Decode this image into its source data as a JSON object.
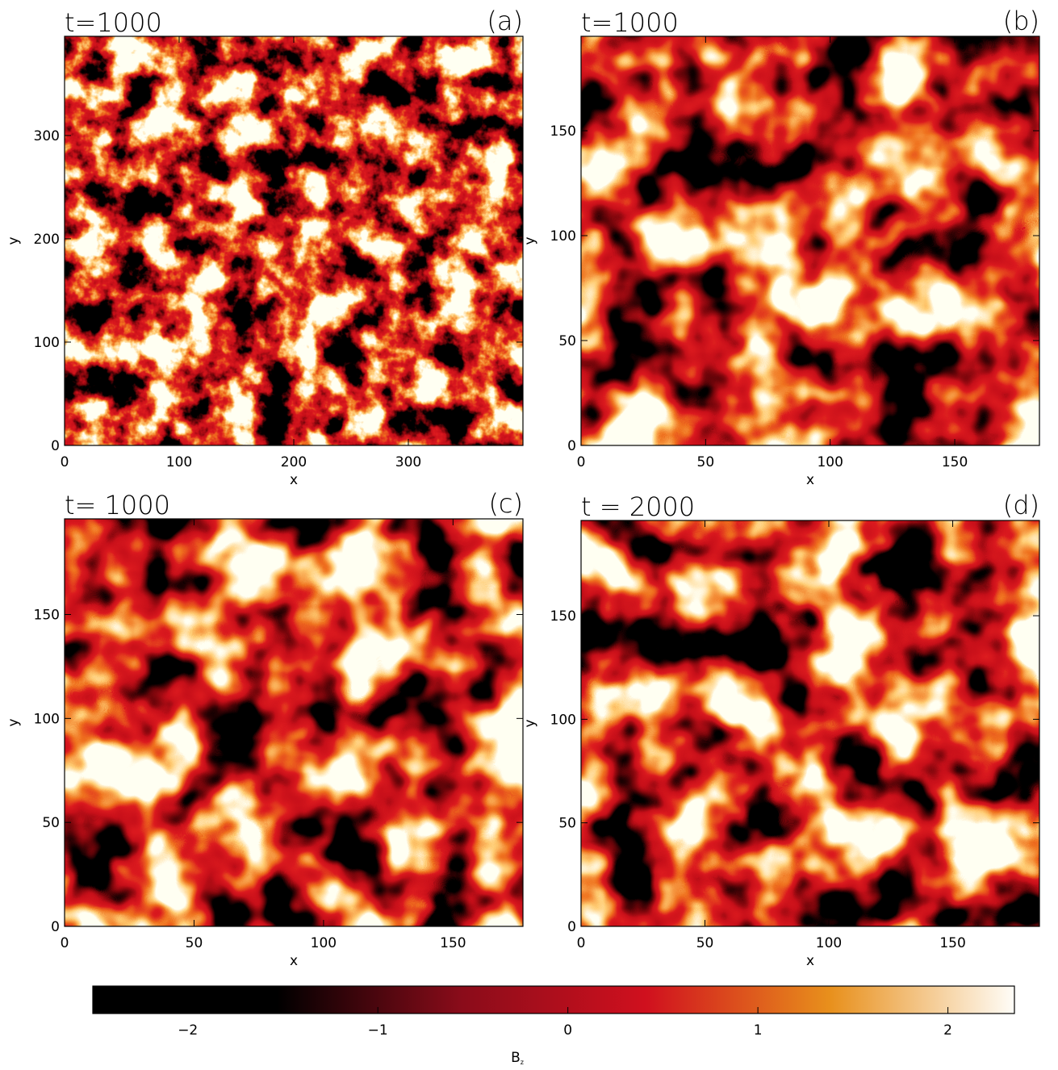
{
  "chart_data": [
    {
      "type": "heatmap",
      "title": "t=1000",
      "panel_label": "(a)",
      "xlabel": "x",
      "ylabel": "y",
      "xlim": [
        0,
        400
      ],
      "ylim": [
        0,
        396
      ],
      "xticks": [
        0,
        100,
        200,
        300
      ],
      "yticks": [
        0,
        100,
        200,
        300
      ]
    },
    {
      "type": "heatmap",
      "title": "t=1000",
      "panel_label": "(b)",
      "xlabel": "x",
      "ylabel": "y",
      "xlim": [
        0,
        184
      ],
      "ylim": [
        0,
        195
      ],
      "xticks": [
        0,
        50,
        100,
        150
      ],
      "yticks": [
        0,
        50,
        100,
        150
      ]
    },
    {
      "type": "heatmap",
      "title": "t= 1000",
      "panel_label": "(c)",
      "xlabel": "x",
      "ylabel": "y",
      "xlim": [
        0,
        177
      ],
      "ylim": [
        0,
        196
      ],
      "xticks": [
        0,
        50,
        100,
        150
      ],
      "yticks": [
        0,
        50,
        100,
        150
      ]
    },
    {
      "type": "heatmap",
      "title": "t = 2000",
      "panel_label": "(d)",
      "xlabel": "x",
      "ylabel": "y",
      "xlim": [
        0,
        185
      ],
      "ylim": [
        0,
        196
      ],
      "xticks": [
        0,
        50,
        100,
        150
      ],
      "yticks": [
        0,
        50,
        100,
        150
      ]
    },
    {
      "type": "colorbar",
      "label": "B",
      "label_sub": "z",
      "xlim": [
        -2.5,
        2.35
      ],
      "xticks": [
        {
          "value": -2,
          "label": "−2"
        },
        {
          "value": -1,
          "label": "−1"
        },
        0,
        1,
        2
      ],
      "colors": [
        "#000000",
        "#000000",
        "#8a0c1a",
        "#d0101e",
        "#e8901c",
        "#fffdf8"
      ]
    }
  ]
}
